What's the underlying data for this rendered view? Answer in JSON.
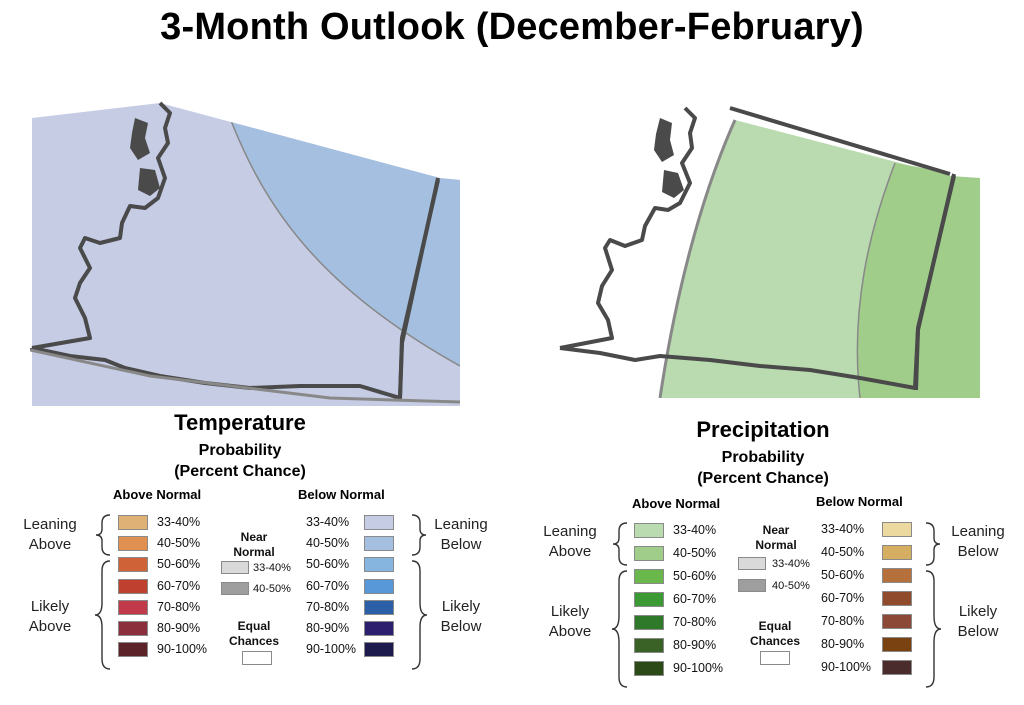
{
  "title": "3-Month Outlook (December-February)",
  "maps": {
    "temperature": {
      "region_colors": {
        "leaning_above": "#c5cce4",
        "leaning_below_zone": "#a5bfe0"
      },
      "outline_color": "#4a4a4a"
    },
    "precipitation": {
      "region_colors": {
        "leaning_above": "#b9dbaf",
        "leaning_above_strong": "#a0cd8a"
      },
      "outline_color": "#4a4a4a"
    }
  },
  "legends": {
    "temperature": {
      "title": "Temperature",
      "subtitle_line1": "Probability",
      "subtitle_line2": "(Percent Chance)",
      "left_header": "Above Normal",
      "right_header": "Below Normal",
      "left_items": [
        {
          "label": "33-40%",
          "color": "#e0b177"
        },
        {
          "label": "40-50%",
          "color": "#e09050"
        },
        {
          "label": "50-60%",
          "color": "#d06238"
        },
        {
          "label": "60-70%",
          "color": "#c04030"
        },
        {
          "label": "70-80%",
          "color": "#c03a4a"
        },
        {
          "label": "80-90%",
          "color": "#8a2f3b"
        },
        {
          "label": "90-100%",
          "color": "#5c2428"
        }
      ],
      "right_items": [
        {
          "label": "33-40%",
          "color": "#c5cce4"
        },
        {
          "label": "40-50%",
          "color": "#a5bfe0"
        },
        {
          "label": "50-60%",
          "color": "#86b5e0"
        },
        {
          "label": "60-70%",
          "color": "#5898d8"
        },
        {
          "label": "70-80%",
          "color": "#2b5fa6"
        },
        {
          "label": "80-90%",
          "color": "#2e1f6e"
        },
        {
          "label": "90-100%",
          "color": "#1d1b4e"
        }
      ],
      "near_normal_header_line1": "Near",
      "near_normal_header_line2": "Normal",
      "near_items": [
        {
          "label": "33-40%",
          "color": "#d9d9d9"
        },
        {
          "label": "40-50%",
          "color": "#9e9e9e"
        }
      ],
      "equal_chances_line1": "Equal",
      "equal_chances_line2": "Chances",
      "equal_color": "#ffffff",
      "leaning_above_line1": "Leaning",
      "leaning_above_line2": "Above",
      "likely_above_line1": "Likely",
      "likely_above_line2": "Above",
      "leaning_below_line1": "Leaning",
      "leaning_below_line2": "Below",
      "likely_below_line1": "Likely",
      "likely_below_line2": "Below"
    },
    "precipitation": {
      "title": "Precipitation",
      "subtitle_line1": "Probability",
      "subtitle_line2": "(Percent Chance)",
      "left_header": "Above Normal",
      "right_header": "Below Normal",
      "left_items": [
        {
          "label": "33-40%",
          "color": "#b9dbaf"
        },
        {
          "label": "40-50%",
          "color": "#a0cd8a"
        },
        {
          "label": "50-60%",
          "color": "#6ab84c"
        },
        {
          "label": "60-70%",
          "color": "#3c9a34"
        },
        {
          "label": "70-80%",
          "color": "#2e7a2a"
        },
        {
          "label": "80-90%",
          "color": "#3a6226"
        },
        {
          "label": "90-100%",
          "color": "#2c4a18"
        }
      ],
      "right_items": [
        {
          "label": "33-40%",
          "color": "#ecd9a0"
        },
        {
          "label": "40-50%",
          "color": "#d6ae62"
        },
        {
          "label": "50-60%",
          "color": "#b5703c"
        },
        {
          "label": "60-70%",
          "color": "#8f4b2c"
        },
        {
          "label": "70-80%",
          "color": "#8c4a36"
        },
        {
          "label": "80-90%",
          "color": "#7a4210"
        },
        {
          "label": "90-100%",
          "color": "#4a2c2c"
        }
      ],
      "near_normal_header_line1": "Near",
      "near_normal_header_line2": "Normal",
      "near_items": [
        {
          "label": "33-40%",
          "color": "#d9d9d9"
        },
        {
          "label": "40-50%",
          "color": "#9e9e9e"
        }
      ],
      "equal_chances_line1": "Equal",
      "equal_chances_line2": "Chances",
      "equal_color": "#ffffff",
      "leaning_above_line1": "Leaning",
      "leaning_above_line2": "Above",
      "likely_above_line1": "Likely",
      "likely_above_line2": "Above",
      "leaning_below_line1": "Leaning",
      "leaning_below_line2": "Below",
      "likely_below_line1": "Likely",
      "likely_below_line2": "Below"
    }
  }
}
